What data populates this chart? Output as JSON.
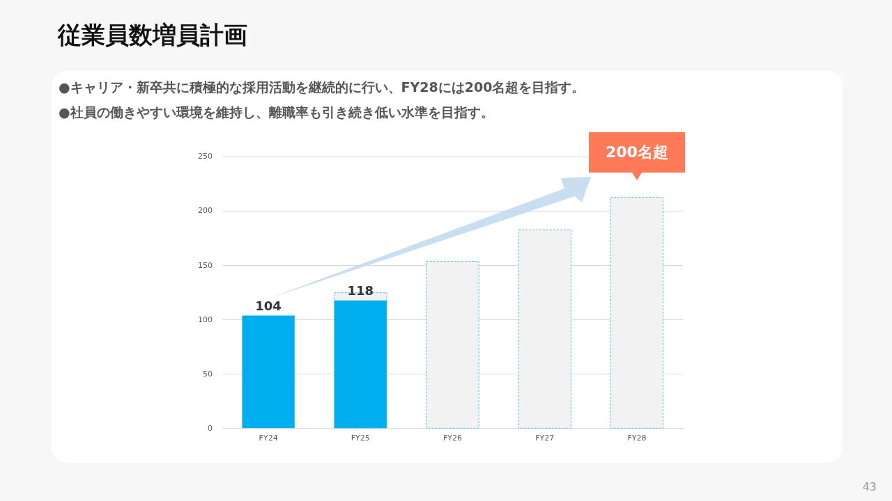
{
  "chart_data": {
    "type": "bar",
    "title": "従業員数増員計画",
    "categories": [
      "FY24",
      "FY25",
      "FY26",
      "FY27",
      "FY28"
    ],
    "series": [
      {
        "color": "#f2f2f2",
        "line_style": "dashed",
        "values": [
          null,
          125,
          154,
          183,
          213
        ]
      },
      {
        "color": "#00aeef",
        "values": [
          104,
          118,
          null,
          null,
          null
        ],
        "value_labels": [
          "104",
          "118",
          null,
          null,
          null
        ]
      }
    ],
    "ylim": [
      0,
      250
    ],
    "yticks": [
      0,
      50,
      100,
      150,
      200,
      250
    ],
    "grid": "y",
    "legend": false,
    "annotations": [
      "●キャリア・新卒共に積極的な採用活動を継続的に行い、FY28には200名超を目指す。",
      "●社員の働きやすい環境を維持し、離職率も引き続き低い水準を目指す。",
      {
        "text": "200名超",
        "x": "FY28",
        "y": 213
      },
      "43"
    ]
  }
}
